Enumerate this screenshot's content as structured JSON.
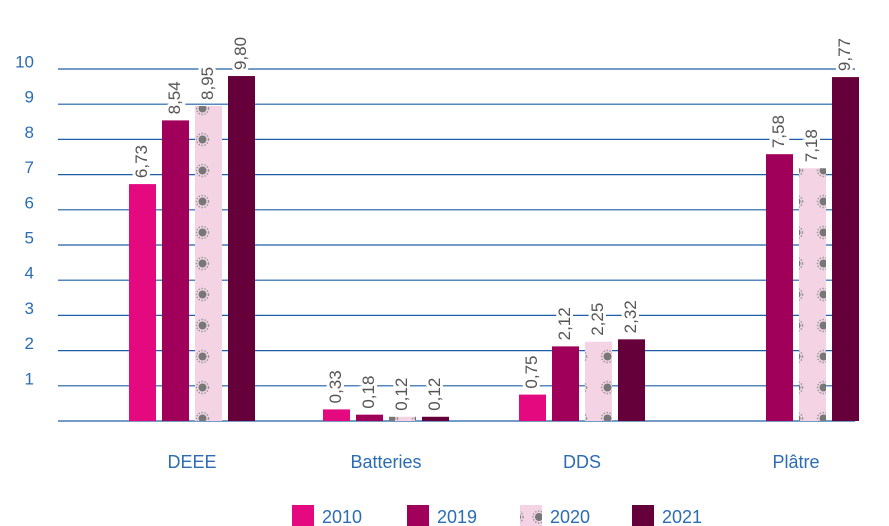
{
  "chart_data": {
    "type": "bar",
    "categories": [
      "DEEE",
      "Batteries",
      "DDS",
      "Plâtre"
    ],
    "series": [
      {
        "name": "2010",
        "color": "#e5097f",
        "values": [
          6.73,
          0.33,
          0.75,
          null
        ],
        "value_labels": [
          "6,73",
          "0,33",
          "0,75",
          null
        ]
      },
      {
        "name": "2019",
        "color": "#a0005a",
        "values": [
          8.54,
          0.18,
          2.12,
          7.58
        ],
        "value_labels": [
          "8,54",
          "0,18",
          "2,12",
          "7,58"
        ]
      },
      {
        "name": "2020",
        "color": "#f4d4e4",
        "pattern": true,
        "values": [
          8.95,
          0.12,
          2.25,
          7.18
        ],
        "value_labels": [
          "8,95",
          "0,12",
          "2,25",
          "7,18"
        ]
      },
      {
        "name": "2021",
        "color": "#65003a",
        "values": [
          9.8,
          0.12,
          2.32,
          9.77
        ],
        "value_labels": [
          "9,80",
          "0,12",
          "2,32",
          "9,77"
        ]
      }
    ],
    "ylim": [
      0,
      10
    ],
    "yticks": [
      1,
      2,
      3,
      4,
      5,
      6,
      7,
      8,
      9,
      10
    ],
    "grid": true,
    "legend": "bottom"
  }
}
